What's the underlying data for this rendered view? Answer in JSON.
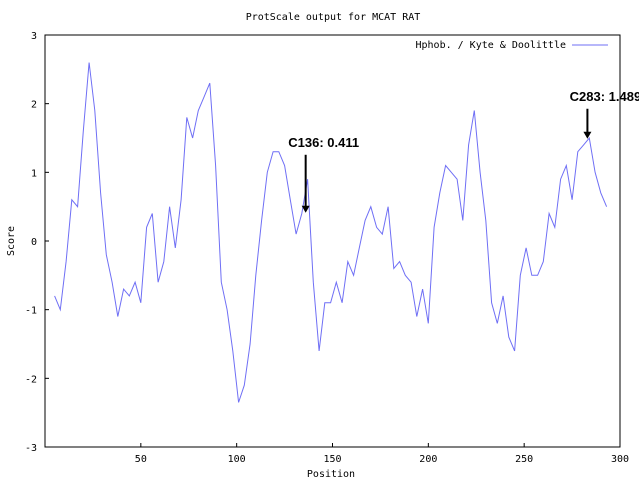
{
  "chart_data": {
    "type": "line",
    "title": "ProtScale output for MCAT RAT",
    "xlabel": "Position",
    "ylabel": "Score",
    "xlim": [
      0,
      300
    ],
    "ylim": [
      -3,
      3
    ],
    "xticks": [
      50,
      100,
      150,
      200,
      250,
      300
    ],
    "yticks": [
      -3,
      -2,
      -1,
      0,
      1,
      2,
      3
    ],
    "legend": "top-right",
    "x": [
      5,
      8,
      11,
      14,
      17,
      20,
      23,
      26,
      29,
      32,
      35,
      38,
      41,
      44,
      47,
      50,
      53,
      56,
      59,
      62,
      65,
      68,
      71,
      74,
      77,
      80,
      83,
      86,
      89,
      92,
      95,
      98,
      101,
      104,
      107,
      110,
      113,
      116,
      119,
      122,
      125,
      128,
      131,
      134,
      137,
      140,
      143,
      146,
      149,
      152,
      155,
      158,
      161,
      164,
      167,
      170,
      173,
      176,
      179,
      182,
      185,
      188,
      191,
      194,
      197,
      200,
      203,
      206,
      209,
      212,
      215,
      218,
      221,
      224,
      227,
      230,
      233,
      236,
      239,
      242,
      245,
      248,
      251,
      254,
      257,
      260,
      263,
      266,
      269,
      272,
      275,
      278,
      281,
      284,
      287,
      290,
      293
    ],
    "series": [
      {
        "name": "Hphob. / Kyte & Doolittle",
        "color": "#6f6ff5",
        "values": [
          -0.8,
          -1.0,
          -0.3,
          0.6,
          0.5,
          1.6,
          2.6,
          1.9,
          0.7,
          -0.2,
          -0.6,
          -1.1,
          -0.7,
          -0.8,
          -0.6,
          -0.9,
          0.2,
          0.4,
          -0.6,
          -0.3,
          0.5,
          -0.1,
          0.6,
          1.8,
          1.5,
          1.9,
          2.1,
          2.3,
          1.1,
          -0.6,
          -1.0,
          -1.6,
          -2.35,
          -2.1,
          -1.5,
          -0.5,
          0.3,
          1.0,
          1.3,
          1.3,
          1.1,
          0.6,
          0.1,
          0.4,
          0.9,
          -0.6,
          -1.6,
          -0.9,
          -0.9,
          -0.6,
          -0.9,
          -0.3,
          -0.5,
          -0.1,
          0.3,
          0.5,
          0.2,
          0.1,
          0.5,
          -0.4,
          -0.3,
          -0.5,
          -0.6,
          -1.1,
          -0.7,
          -1.2,
          0.2,
          0.7,
          1.1,
          1.0,
          0.9,
          0.3,
          1.4,
          1.9,
          1.0,
          0.3,
          -0.9,
          -1.2,
          -0.8,
          -1.4,
          -1.6,
          -0.5,
          -0.1,
          -0.5,
          -0.5,
          -0.3,
          0.4,
          0.2,
          0.9,
          1.1,
          0.6,
          1.3,
          1.4,
          1.5,
          1.0,
          0.7,
          0.5
        ]
      }
    ],
    "annotations": [
      {
        "text": "C136: 0.411",
        "x": 136,
        "y": 0.411
      },
      {
        "text": "C283: 1.489",
        "x": 283,
        "y": 1.489
      }
    ]
  }
}
